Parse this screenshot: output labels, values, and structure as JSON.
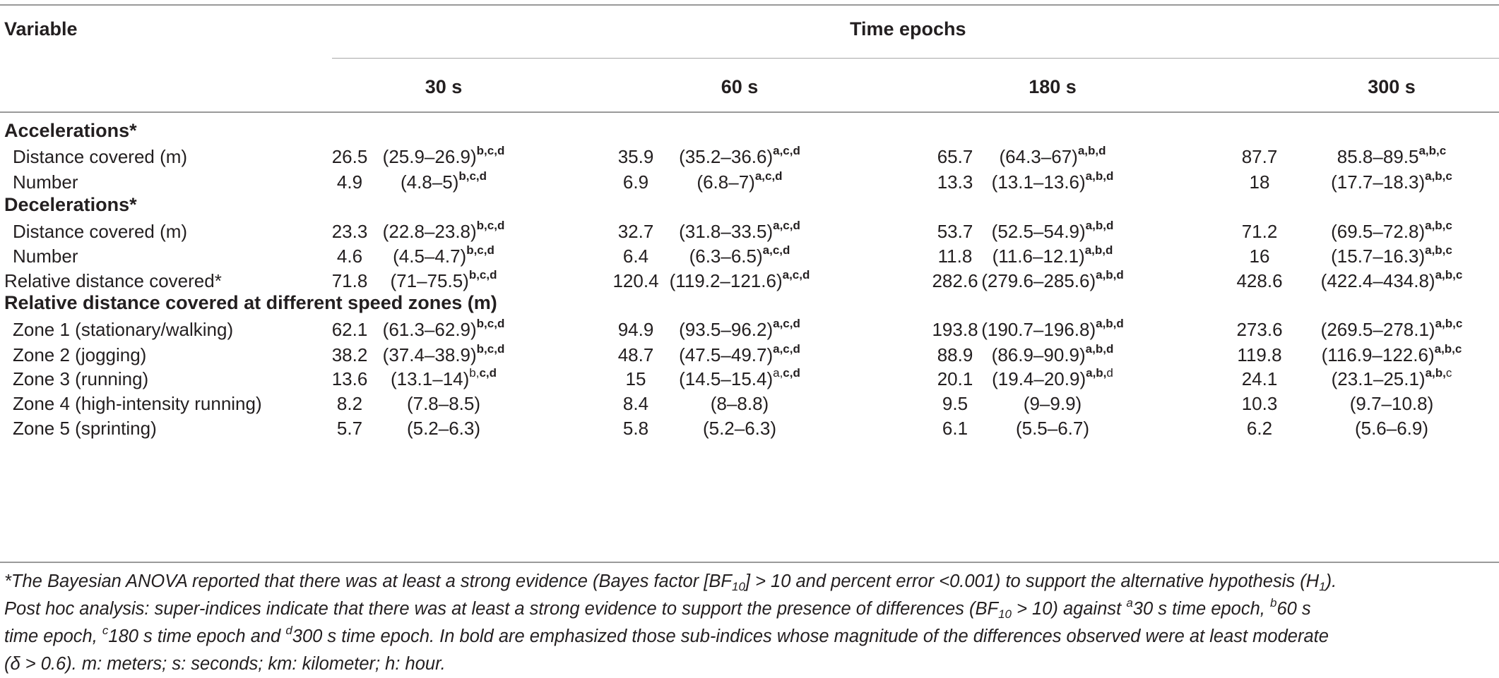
{
  "header": {
    "variable_label": "Variable",
    "group_label": "Time epochs",
    "epochs": [
      "30 s",
      "60 s",
      "180 s",
      "300 s"
    ]
  },
  "sections": [
    {
      "title": "Accelerations*",
      "rows": [
        {
          "label": "Distance covered (m)",
          "cells": [
            {
              "mean": "26.5",
              "ci": "(25.9–26.9)",
              "sup": [
                {
                  "t": "b,c,d",
                  "b": true
                }
              ]
            },
            {
              "mean": "35.9",
              "ci": "(35.2–36.6)",
              "sup": [
                {
                  "t": "a,c,d",
                  "b": true
                }
              ]
            },
            {
              "mean": "65.7",
              "ci": "(64.3–67)",
              "sup": [
                {
                  "t": "a,b,d",
                  "b": true
                }
              ]
            },
            {
              "mean": "87.7",
              "ci": "85.8–89.5",
              "sup": [
                {
                  "t": "a,b,c",
                  "b": true
                }
              ]
            }
          ]
        },
        {
          "label": "Number",
          "cells": [
            {
              "mean": "4.9",
              "ci": "(4.8–5)",
              "sup": [
                {
                  "t": "b,c,d",
                  "b": true
                }
              ]
            },
            {
              "mean": "6.9",
              "ci": "(6.8–7)",
              "sup": [
                {
                  "t": "a,c,d",
                  "b": true
                }
              ]
            },
            {
              "mean": "13.3",
              "ci": "(13.1–13.6)",
              "sup": [
                {
                  "t": "a,b,d",
                  "b": true
                }
              ]
            },
            {
              "mean": "18",
              "ci": "(17.7–18.3)",
              "sup": [
                {
                  "t": "a,b,c",
                  "b": true
                }
              ]
            }
          ]
        }
      ]
    },
    {
      "title": "Decelerations*",
      "rows": [
        {
          "label": "Distance covered (m)",
          "cells": [
            {
              "mean": "23.3",
              "ci": "(22.8–23.8)",
              "sup": [
                {
                  "t": "b,c,d",
                  "b": true
                }
              ]
            },
            {
              "mean": "32.7",
              "ci": "(31.8–33.5)",
              "sup": [
                {
                  "t": "a,c,d",
                  "b": true
                }
              ]
            },
            {
              "mean": "53.7",
              "ci": "(52.5–54.9)",
              "sup": [
                {
                  "t": "a,b,d",
                  "b": true
                }
              ]
            },
            {
              "mean": "71.2",
              "ci": "(69.5–72.8)",
              "sup": [
                {
                  "t": "a,b,c",
                  "b": true
                }
              ]
            }
          ]
        },
        {
          "label": "Number",
          "cells": [
            {
              "mean": "4.6",
              "ci": "(4.5–4.7)",
              "sup": [
                {
                  "t": "b,c,d",
                  "b": true
                }
              ]
            },
            {
              "mean": "6.4",
              "ci": "(6.3–6.5)",
              "sup": [
                {
                  "t": "a,c,d",
                  "b": true
                }
              ]
            },
            {
              "mean": "11.8",
              "ci": "(11.6–12.1)",
              "sup": [
                {
                  "t": "a,b,d",
                  "b": true
                }
              ]
            },
            {
              "mean": "16",
              "ci": "(15.7–16.3)",
              "sup": [
                {
                  "t": "a,b,c",
                  "b": true
                }
              ]
            }
          ]
        }
      ]
    },
    {
      "title": "",
      "rows": [
        {
          "label": "Relative distance covered*",
          "flush": true,
          "cells": [
            {
              "mean": "71.8",
              "ci": "(71–75.5)",
              "sup": [
                {
                  "t": "b,c,d",
                  "b": true
                }
              ]
            },
            {
              "mean": "120.4",
              "ci": "(119.2–121.6)",
              "sup": [
                {
                  "t": "a,c,d",
                  "b": true
                }
              ]
            },
            {
              "mean": "282.6",
              "ci": "(279.6–285.6)",
              "sup": [
                {
                  "t": "a,b,d",
                  "b": true
                }
              ]
            },
            {
              "mean": "428.6",
              "ci": "(422.4–434.8)",
              "sup": [
                {
                  "t": "a,b,c",
                  "b": true
                }
              ]
            }
          ]
        }
      ]
    },
    {
      "title": "Relative distance covered at different speed zones (m)",
      "rows": [
        {
          "label": "Zone 1 (stationary/walking)",
          "cells": [
            {
              "mean": "62.1",
              "ci": "(61.3–62.9)",
              "sup": [
                {
                  "t": "b,c,d",
                  "b": true
                }
              ]
            },
            {
              "mean": "94.9",
              "ci": "(93.5–96.2)",
              "sup": [
                {
                  "t": "a,c,d",
                  "b": true
                }
              ]
            },
            {
              "mean": "193.8",
              "ci": "(190.7–196.8)",
              "sup": [
                {
                  "t": "a,b,d",
                  "b": true
                }
              ]
            },
            {
              "mean": "273.6",
              "ci": "(269.5–278.1)",
              "sup": [
                {
                  "t": "a,b,c",
                  "b": true
                }
              ]
            }
          ]
        },
        {
          "label": "Zone 2 (jogging)",
          "cells": [
            {
              "mean": "38.2",
              "ci": "(37.4–38.9)",
              "sup": [
                {
                  "t": "b,c,d",
                  "b": true
                }
              ]
            },
            {
              "mean": "48.7",
              "ci": "(47.5–49.7)",
              "sup": [
                {
                  "t": "a,c,d",
                  "b": true
                }
              ]
            },
            {
              "mean": "88.9",
              "ci": "(86.9–90.9)",
              "sup": [
                {
                  "t": "a,b,d",
                  "b": true
                }
              ]
            },
            {
              "mean": "119.8",
              "ci": "(116.9–122.6)",
              "sup": [
                {
                  "t": "a,b,c",
                  "b": true
                }
              ]
            }
          ]
        },
        {
          "label": "Zone 3 (running)",
          "cells": [
            {
              "mean": "13.6",
              "ci": "(13.1–14)",
              "sup": [
                {
                  "t": "b,",
                  "b": false
                },
                {
                  "t": "c,d",
                  "b": true
                }
              ]
            },
            {
              "mean": "15",
              "ci": "(14.5–15.4)",
              "sup": [
                {
                  "t": "a,",
                  "b": false
                },
                {
                  "t": "c,d",
                  "b": true
                }
              ]
            },
            {
              "mean": "20.1",
              "ci": "(19.4–20.9)",
              "sup": [
                {
                  "t": "a,b,",
                  "b": true
                },
                {
                  "t": "d",
                  "b": false
                }
              ]
            },
            {
              "mean": "24.1",
              "ci": "(23.1–25.1)",
              "sup": [
                {
                  "t": "a,b,",
                  "b": true
                },
                {
                  "t": "c",
                  "b": false
                }
              ]
            }
          ]
        },
        {
          "label": "Zone 4 (high-intensity running)",
          "cells": [
            {
              "mean": "8.2",
              "ci": "(7.8–8.5)",
              "sup": []
            },
            {
              "mean": "8.4",
              "ci": "(8–8.8)",
              "sup": []
            },
            {
              "mean": "9.5",
              "ci": "(9–9.9)",
              "sup": []
            },
            {
              "mean": "10.3",
              "ci": "(9.7–10.8)",
              "sup": []
            }
          ]
        },
        {
          "label": "Zone 5 (sprinting)",
          "cells": [
            {
              "mean": "5.7",
              "ci": "(5.2–6.3)",
              "sup": []
            },
            {
              "mean": "5.8",
              "ci": "(5.2–6.3)",
              "sup": []
            },
            {
              "mean": "6.1",
              "ci": "(5.5–6.7)",
              "sup": []
            },
            {
              "mean": "6.2",
              "ci": "(5.6–6.9)",
              "sup": []
            }
          ]
        }
      ]
    }
  ],
  "footnote": {
    "line1_a": "*The Bayesian ANOVA reported that there was at least a strong evidence (Bayes factor [BF",
    "line1_sub1": "10",
    "line1_b": "] > 10 and percent error <0.001) to support the alternative hypothesis (H",
    "line1_sub2": "1",
    "line1_c": ").",
    "line2_a": "Post hoc analysis: super-indices indicate that there was at least a strong evidence to support the presence of differences (BF",
    "line2_sub": "10",
    "line2_b": " > 10) against ",
    "sup_a": "a",
    "t_a": "30 s time epoch, ",
    "sup_b": "b",
    "t_b": "60 s",
    "line3_a": "time epoch, ",
    "sup_c": "c",
    "t_c": "180 s time epoch and ",
    "sup_d": "d",
    "t_d": "300 s time epoch. In bold are emphasized those sub-indices whose magnitude of the differences observed were at least moderate",
    "line4": "(δ  > 0.6). m: meters; s: seconds; km: kilometer; h: hour."
  }
}
